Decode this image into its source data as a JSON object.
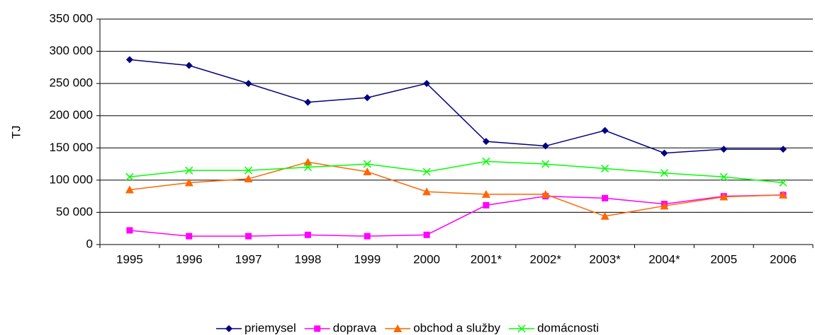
{
  "chart_data": {
    "type": "line",
    "y_label": "TJ",
    "categories": [
      "1995",
      "1996",
      "1997",
      "1998",
      "1999",
      "2000",
      "2001*",
      "2002*",
      "2003*",
      "2004*",
      "2005",
      "2006"
    ],
    "series": [
      {
        "name": "priemysel",
        "color": "#000080",
        "marker": "diamond",
        "values": [
          287000,
          278000,
          250000,
          221000,
          228000,
          250000,
          160000,
          153000,
          177000,
          142000,
          148000,
          148000
        ]
      },
      {
        "name": "doprava",
        "color": "#ff00ff",
        "marker": "square",
        "values": [
          22000,
          13000,
          13000,
          15000,
          13000,
          15000,
          61000,
          75000,
          72000,
          63000,
          75000,
          77000
        ]
      },
      {
        "name": "obchod a služby",
        "color": "#ff6600",
        "marker": "triangle",
        "values": [
          85000,
          96000,
          102000,
          128000,
          113000,
          82000,
          78000,
          78000,
          44000,
          60000,
          74000,
          77000
        ]
      },
      {
        "name": "domácnosti",
        "color": "#00ff00",
        "marker": "x",
        "values": [
          105000,
          115000,
          115000,
          120000,
          125000,
          113000,
          129000,
          125000,
          118000,
          111000,
          105000,
          96000
        ]
      }
    ],
    "ylim": [
      0,
      350000
    ],
    "yticks": [
      0,
      {
        "value": 50000,
        "label": "50 000"
      },
      {
        "value": 100000,
        "label": "100 000"
      },
      {
        "value": 150000,
        "label": "150 000"
      },
      {
        "value": 200000,
        "label": "200 000"
      },
      {
        "value": 250000,
        "label": "250 000"
      },
      {
        "value": 300000,
        "label": "300 000"
      },
      {
        "value": 350000,
        "label": "350 000"
      }
    ],
    "grid": true,
    "legend": "bottom"
  }
}
